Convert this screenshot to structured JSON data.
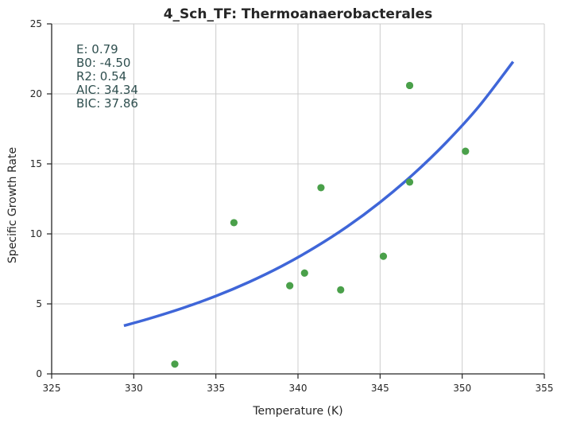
{
  "chart_data": {
    "type": "scatter",
    "title": "4_Sch_TF: Thermoanaerobacterales",
    "xlabel": "Temperature (K)",
    "ylabel": "Specific Growth Rate",
    "xlim": [
      325,
      355
    ],
    "ylim": [
      0,
      25
    ],
    "xticks": [
      "325",
      "330",
      "335",
      "340",
      "345",
      "350",
      "355"
    ],
    "yticks": [
      "0",
      "5",
      "10",
      "15",
      "20",
      "25"
    ],
    "grid": true,
    "points": {
      "color": "#4aa04a",
      "x": [
        332.5,
        336.1,
        339.5,
        340.4,
        341.4,
        342.6,
        345.2,
        346.8,
        346.8,
        350.2
      ],
      "y": [
        0.7,
        10.8,
        6.3,
        7.2,
        13.3,
        6.0,
        8.4,
        20.6,
        13.7,
        15.9
      ]
    },
    "fit": {
      "color": "#3f66d8",
      "x": [
        329.4,
        331,
        333,
        335,
        337,
        339,
        341,
        343,
        345,
        347,
        349,
        351,
        353.1
      ],
      "y": [
        3.44,
        3.97,
        4.71,
        5.56,
        6.55,
        7.69,
        9.01,
        10.52,
        12.26,
        14.24,
        16.5,
        19.08,
        22.3
      ]
    },
    "stats": {
      "color": "#2f4f4f",
      "lines": [
        "E:  0.79",
        "B0:  -4.50",
        "R2:  0.54",
        "AIC: 34.34",
        "BIC: 37.86"
      ]
    }
  }
}
